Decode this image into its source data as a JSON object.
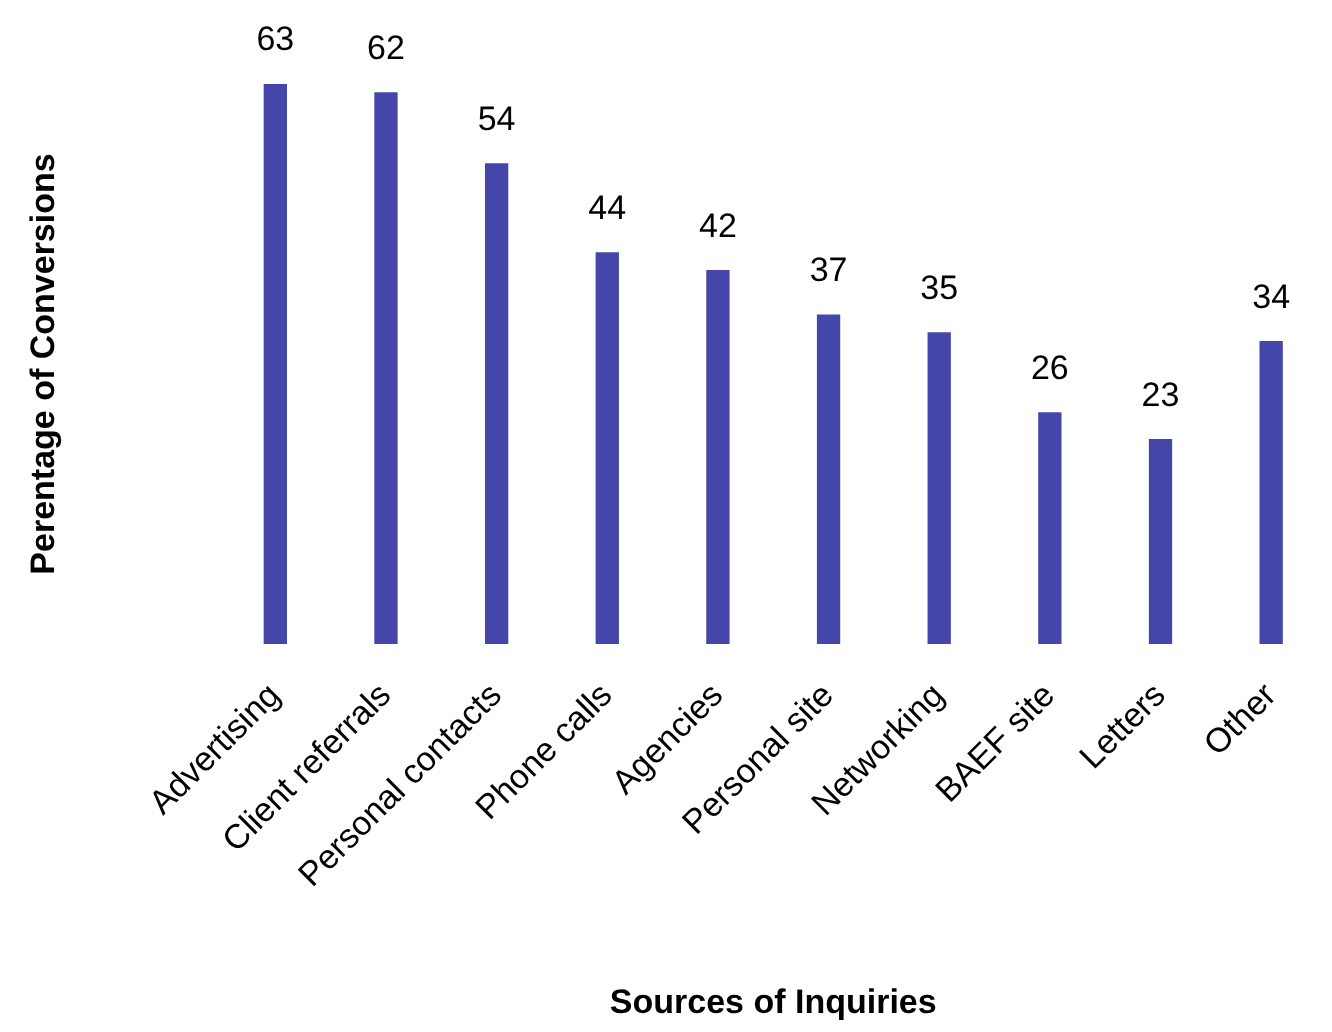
{
  "chart_data": {
    "type": "bar",
    "xlabel": "Sources of Inquiries",
    "ylabel": "Perentage of Conversions",
    "categories": [
      "Advertising",
      "Client referrals",
      "Personal contacts",
      "Phone calls",
      "Agencies",
      "Personal site",
      "Networking",
      "BAEF site",
      "Letters",
      "Other"
    ],
    "values": [
      63,
      62,
      54,
      44,
      42,
      37,
      35,
      26,
      23,
      34
    ],
    "color": "#4447a9",
    "data_labels": true,
    "tick_labels": "x"
  }
}
